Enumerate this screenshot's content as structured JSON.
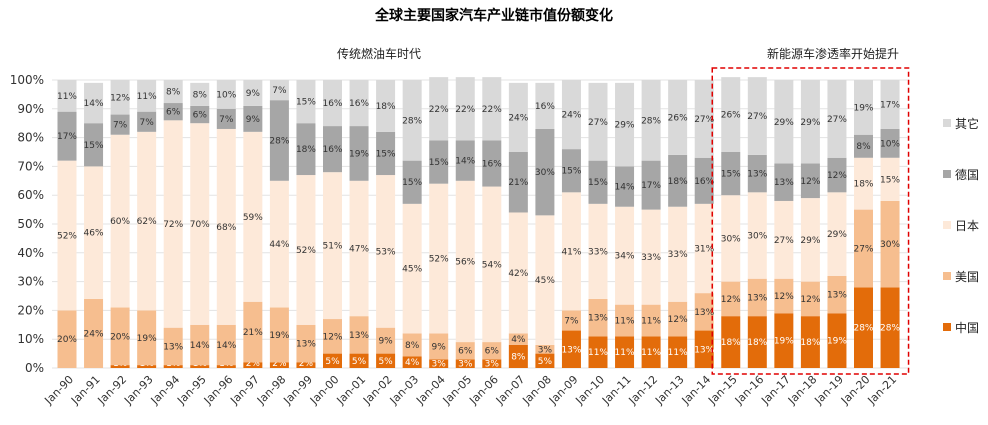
{
  "chart_data": {
    "type": "bar",
    "stacked": true,
    "title": "全球主要国家汽车产业链市值份额变化",
    "annotations": {
      "traditional_era": "传统燃油车时代",
      "nev_era": "新能源车渗透率开始提升"
    },
    "ylim": [
      0,
      100
    ],
    "y_ticks": [
      "0%",
      "10%",
      "20%",
      "30%",
      "40%",
      "50%",
      "60%",
      "70%",
      "80%",
      "90%",
      "100%"
    ],
    "categories": [
      "Jan-90",
      "Jan-91",
      "Jan-92",
      "Jan-93",
      "Jan-94",
      "Jan-95",
      "Jan-96",
      "Jan-97",
      "Jan-98",
      "Jan-99",
      "Jan-00",
      "Jan-01",
      "Jan-02",
      "Jan-03",
      "Jan-04",
      "Jan-05",
      "Jan-06",
      "Jan-07",
      "Jan-08",
      "Jan-09",
      "Jan-10",
      "Jan-11",
      "Jan-12",
      "Jan-13",
      "Jan-14",
      "Jan-15",
      "Jan-16",
      "Jan-17",
      "Jan-18",
      "Jan-19",
      "Jan-20",
      "Jan-21"
    ],
    "highlight_start": "Jan-15",
    "series": [
      {
        "name": "中国",
        "color": "#e36c0a",
        "text_color": "#ffffff",
        "values": [
          0,
          0,
          1,
          1,
          1,
          1,
          1,
          2,
          2,
          2,
          5,
          5,
          5,
          4,
          3,
          3,
          3,
          8,
          5,
          13,
          11,
          11,
          11,
          11,
          13,
          18,
          18,
          19,
          18,
          19,
          28,
          28
        ],
        "labels": [
          "0%",
          "0%",
          "1%",
          "1%",
          "1%",
          "1%",
          "1%",
          "2%",
          "2%",
          "2%",
          "5%",
          "5%",
          "5%",
          "4%",
          "3%",
          "3%",
          "3%",
          "8%",
          "5%",
          "13%",
          "11%",
          "11%",
          "11%",
          "11%",
          "13%",
          "18%",
          "18%",
          "19%",
          "18%",
          "19%",
          "28%",
          "28%"
        ]
      },
      {
        "name": "美国",
        "color": "#f6be8f",
        "text_color": "#333333",
        "values": [
          20,
          24,
          20,
          19,
          13,
          14,
          14,
          21,
          19,
          13,
          12,
          13,
          9,
          8,
          9,
          6,
          6,
          4,
          3,
          7,
          13,
          11,
          11,
          12,
          13,
          12,
          13,
          12,
          12,
          13,
          27,
          30
        ],
        "labels": [
          "20%",
          "24%",
          "20%",
          "19%",
          "13%",
          "14%",
          "14%",
          "21%",
          "19%",
          "13%",
          "12%",
          "13%",
          "9%",
          "8%",
          "9%",
          "6%",
          "6%",
          "4%",
          "3%",
          "7%",
          "13%",
          "11%",
          "11%",
          "12%",
          "13%",
          "12%",
          "13%",
          "12%",
          "12%",
          "13%",
          "27%",
          "30%"
        ]
      },
      {
        "name": "日本",
        "color": "#fde9d9",
        "text_color": "#333333",
        "values": [
          52,
          46,
          60,
          62,
          72,
          70,
          68,
          59,
          44,
          52,
          51,
          47,
          53,
          45,
          52,
          56,
          54,
          42,
          45,
          41,
          33,
          34,
          33,
          33,
          31,
          30,
          30,
          27,
          29,
          29,
          18,
          15
        ],
        "labels": [
          "52%",
          "46%",
          "60%",
          "62%",
          "72%",
          "70%",
          "68%",
          "59%",
          "44%",
          "52%",
          "51%",
          "47%",
          "53%",
          "45%",
          "52%",
          "56%",
          "54%",
          "42%",
          "45%",
          "41%",
          "33%",
          "34%",
          "33%",
          "33%",
          "31%",
          "30%",
          "30%",
          "27%",
          "29%",
          "29%",
          "18%",
          "15%"
        ]
      },
      {
        "name": "德国",
        "color": "#a6a6a6",
        "text_color": "#333333",
        "values": [
          17,
          15,
          7,
          7,
          6,
          6,
          7,
          9,
          28,
          18,
          16,
          19,
          15,
          15,
          15,
          14,
          16,
          21,
          30,
          15,
          15,
          14,
          17,
          18,
          16,
          15,
          13,
          13,
          12,
          12,
          8,
          10
        ],
        "labels": [
          "17%",
          "15%",
          "7%",
          "7%",
          "6%",
          "6%",
          "7%",
          "9%",
          "28%",
          "18%",
          "16%",
          "19%",
          "15%",
          "15%",
          "15%",
          "14%",
          "16%",
          "21%",
          "30%",
          "15%",
          "15%",
          "14%",
          "17%",
          "18%",
          "16%",
          "15%",
          "13%",
          "13%",
          "12%",
          "12%",
          "8%",
          "10%"
        ]
      },
      {
        "name": "其它",
        "color": "#d9d9d9",
        "text_color": "#333333",
        "values": [
          11,
          14,
          12,
          11,
          8,
          8,
          10,
          9,
          7,
          15,
          16,
          16,
          18,
          28,
          22,
          22,
          22,
          24,
          16,
          24,
          27,
          29,
          28,
          26,
          27,
          26,
          27,
          29,
          29,
          27,
          19,
          17
        ],
        "labels": [
          "11%",
          "14%",
          "12%",
          "11%",
          "8%",
          "8%",
          "10%",
          "9%",
          "7%",
          "15%",
          "16%",
          "16%",
          "18%",
          "28%",
          "22%",
          "22%",
          "22%",
          "24%",
          "16%",
          "24%",
          "27%",
          "29%",
          "28%",
          "26%",
          "27%",
          "26%",
          "27%",
          "29%",
          "29%",
          "27%",
          "19%",
          "17%"
        ]
      }
    ],
    "legend_order": [
      "其它",
      "德国",
      "日本",
      "美国",
      "中国"
    ],
    "legend_position": "right",
    "highlight_border_color": "#e00000"
  }
}
